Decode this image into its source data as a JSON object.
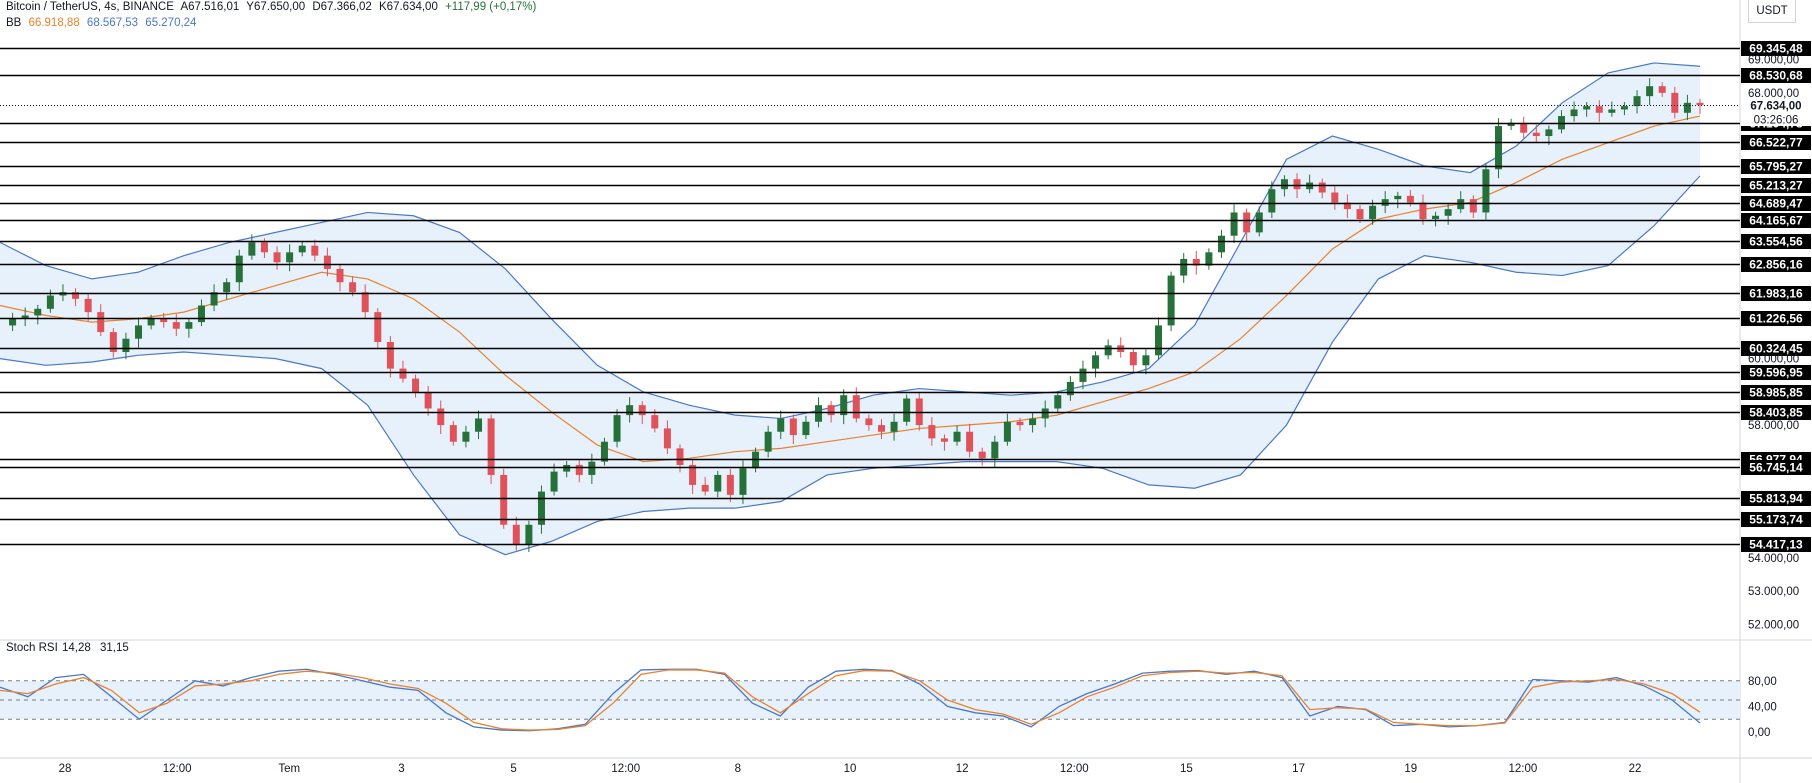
{
  "header": {
    "symbol": "Bitcoin / TetherUS, 4s, BINANCE",
    "open": "A67.516,01",
    "high": "Y67.650,00",
    "low": "D67.366,02",
    "close": "K67.634,00",
    "change": "+117,99 (+0,17%)",
    "bb_label": "BB",
    "bb_mid": "66.918,88",
    "bb_upper": "68.567,53",
    "bb_lower": "65.270,24",
    "currency": "USDT"
  },
  "colors": {
    "up": "#26703a",
    "down": "#e0525a",
    "bb_band": "#4a78c9",
    "bb_basis": "#e8822e",
    "bb_fill": "#e7f1fb",
    "k_line": "#4a78c9",
    "d_line": "#e8822e",
    "level_line": "#000000",
    "label_bg": "#000000"
  },
  "chart_data": [
    {
      "type": "candlestick",
      "title": "Bitcoin / TetherUS, 4s, BINANCE",
      "ylim": [
        52000,
        70000
      ],
      "y_ticks": [
        "69.000,00",
        "68.000,00",
        "60.000,00",
        "58.000,00",
        "54.000,00",
        "53.000,00",
        "52.000,00"
      ],
      "x_ticks": [
        "28",
        "12:00",
        "Tem",
        "3",
        "5",
        "12:00",
        "8",
        "10",
        "12",
        "12:00",
        "15",
        "17",
        "19",
        "12:00",
        "22"
      ],
      "last_price_label": "67.634,00",
      "countdown": "03:26:06",
      "horizontal_levels": [
        69345.48,
        68530.68,
        67104.78,
        66522.77,
        65795.27,
        65213.27,
        64689.47,
        64165.67,
        63554.56,
        62856.16,
        61983.16,
        61226.56,
        60324.45,
        59596.95,
        58985.85,
        58403.85,
        56977.94,
        56745.14,
        55813.94,
        55173.74,
        54417.13
      ],
      "level_labels": [
        "69.345,48",
        "68.530,68",
        "67.104,78",
        "66.522,77",
        "65.795,27",
        "65.213,27",
        "64.689,47",
        "64.165,67",
        "63.554,56",
        "62.856,16",
        "61.983,16",
        "61.226,56",
        "60.324,45",
        "59.596,95",
        "58.985,85",
        "58.403,85",
        "56.977,94",
        "56.745,14",
        "55.813,94",
        "55.173,74",
        "54.417,13"
      ],
      "close_path": [
        61000,
        61200,
        61300,
        61500,
        61900,
        62000,
        61800,
        61400,
        60800,
        60200,
        60600,
        61000,
        61200,
        61100,
        60900,
        61100,
        61600,
        62000,
        62300,
        63100,
        63500,
        63200,
        62900,
        63200,
        63400,
        63100,
        62700,
        62300,
        62000,
        61400,
        60500,
        59700,
        59400,
        59000,
        58500,
        58000,
        57500,
        57800,
        58200,
        56500,
        55000,
        54400,
        55000,
        56000,
        56600,
        56800,
        56500,
        56900,
        57500,
        58300,
        58600,
        58300,
        57900,
        57300,
        56800,
        56200,
        56000,
        56500,
        55900,
        56700,
        57200,
        57800,
        58200,
        57700,
        58100,
        58600,
        58300,
        58900,
        58200,
        58000,
        57800,
        58100,
        58800,
        58000,
        57600,
        57500,
        57800,
        57200,
        57000,
        57500,
        58100,
        58000,
        58200,
        58500,
        58900,
        59300,
        59700,
        60100,
        60400,
        60200,
        59800,
        60100,
        61000,
        62500,
        63000,
        62800,
        63200,
        63700,
        64400,
        63800,
        64400,
        65100,
        65400,
        65100,
        65300,
        65000,
        64700,
        64500,
        64200,
        64600,
        64800,
        64900,
        64700,
        64200,
        64300,
        64500,
        64800,
        64400,
        65700,
        67000,
        67100,
        66800,
        66700,
        66900,
        67300,
        67500,
        67600,
        67400,
        67500,
        67600,
        67900,
        68200,
        68000,
        67400,
        67700,
        67634
      ],
      "bb_upper_path": [
        63500,
        62800,
        62400,
        62600,
        63100,
        63500,
        63800,
        64100,
        64400,
        64300,
        63800,
        62700,
        61200,
        59800,
        59000,
        58600,
        58300,
        58200,
        58500,
        58900,
        59100,
        59000,
        58900,
        59000,
        59300,
        59700,
        61000,
        63500,
        66000,
        66700,
        66300,
        65800,
        65600,
        66400,
        67700,
        68600,
        68900,
        68800
      ],
      "bb_basis_path": [
        61600,
        61300,
        61100,
        61200,
        61400,
        61800,
        62200,
        62600,
        62400,
        61800,
        60800,
        59500,
        58400,
        57400,
        56900,
        57000,
        57200,
        57300,
        57500,
        57700,
        57900,
        58000,
        58100,
        58300,
        58700,
        59100,
        59600,
        60600,
        61900,
        63300,
        64200,
        64500,
        64700,
        65300,
        66000,
        66500,
        67000,
        67300
      ],
      "bb_lower_path": [
        60000,
        59800,
        59900,
        60100,
        60200,
        60100,
        60000,
        59700,
        58600,
        56500,
        54700,
        54100,
        54500,
        55100,
        55400,
        55500,
        55500,
        55700,
        56500,
        56700,
        56800,
        56900,
        56900,
        56900,
        56700,
        56200,
        56100,
        56500,
        58000,
        60500,
        62400,
        63100,
        62900,
        62600,
        62500,
        62800,
        64000,
        65500
      ]
    },
    {
      "type": "line",
      "title": "Stoch RSI",
      "series": [
        {
          "name": "14,28",
          "values": [
            70,
            55,
            85,
            90,
            55,
            20,
            50,
            80,
            72,
            85,
            95,
            98,
            90,
            80,
            70,
            65,
            30,
            8,
            3,
            2,
            5,
            12,
            60,
            97,
            98,
            98,
            90,
            45,
            25,
            70,
            95,
            98,
            96,
            75,
            40,
            30,
            25,
            8,
            40,
            60,
            75,
            92,
            95,
            96,
            90,
            95,
            85,
            25,
            40,
            35,
            10,
            12,
            8,
            10,
            15,
            82,
            80,
            78,
            85,
            72,
            50,
            14
          ]
        },
        {
          "name": "31,15",
          "values": [
            65,
            60,
            75,
            85,
            65,
            30,
            45,
            72,
            75,
            80,
            90,
            95,
            92,
            85,
            75,
            68,
            45,
            15,
            5,
            3,
            4,
            10,
            45,
            90,
            97,
            97,
            92,
            55,
            30,
            60,
            88,
            96,
            95,
            80,
            50,
            35,
            28,
            12,
            30,
            55,
            70,
            88,
            93,
            95,
            92,
            93,
            88,
            35,
            38,
            36,
            15,
            12,
            10,
            10,
            14,
            70,
            78,
            80,
            82,
            75,
            60,
            31
          ]
        }
      ],
      "ylim": [
        0,
        100
      ],
      "y_ticks": [
        "80,00",
        "40,00",
        "0,00"
      ],
      "bands": [
        20,
        80
      ]
    }
  ]
}
